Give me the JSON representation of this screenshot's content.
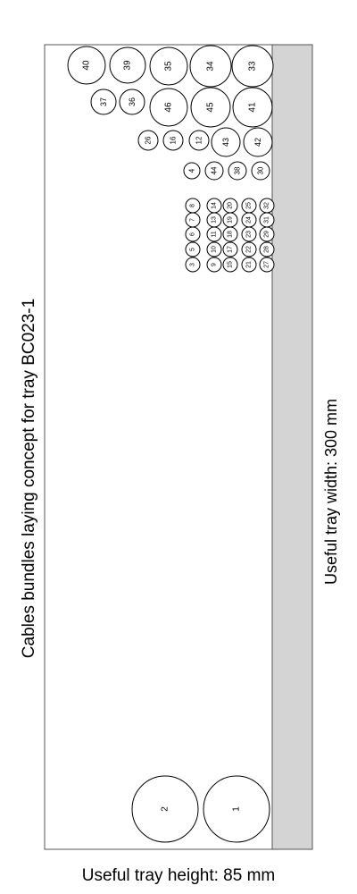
{
  "diagram": {
    "title": "Cables bundles laying concept for tray BC023-1",
    "width_label": "Useful tray width: 300 mm",
    "height_label": "Useful tray height: 85 mm",
    "colors": {
      "tray_fill": "#d4d4d4",
      "outline": "#555555",
      "circle": "#000000",
      "background": "#ffffff"
    },
    "bundles": [
      {
        "id": "1"
      },
      {
        "id": "2"
      },
      {
        "id": "33"
      },
      {
        "id": "34"
      },
      {
        "id": "35"
      },
      {
        "id": "39"
      },
      {
        "id": "40"
      },
      {
        "id": "41"
      },
      {
        "id": "45"
      },
      {
        "id": "46"
      },
      {
        "id": "36"
      },
      {
        "id": "37"
      },
      {
        "id": "42"
      },
      {
        "id": "43"
      },
      {
        "id": "12"
      },
      {
        "id": "16"
      },
      {
        "id": "26"
      },
      {
        "id": "30"
      },
      {
        "id": "38"
      },
      {
        "id": "44"
      },
      {
        "id": "4"
      },
      {
        "id": "3"
      },
      {
        "id": "5"
      },
      {
        "id": "6"
      },
      {
        "id": "7"
      },
      {
        "id": "8"
      },
      {
        "id": "9"
      },
      {
        "id": "10"
      },
      {
        "id": "11"
      },
      {
        "id": "13"
      },
      {
        "id": "14"
      },
      {
        "id": "15"
      },
      {
        "id": "17"
      },
      {
        "id": "18"
      },
      {
        "id": "19"
      },
      {
        "id": "20"
      },
      {
        "id": "21"
      },
      {
        "id": "22"
      },
      {
        "id": "23"
      },
      {
        "id": "24"
      },
      {
        "id": "25"
      },
      {
        "id": "27"
      },
      {
        "id": "28"
      },
      {
        "id": "29"
      },
      {
        "id": "31"
      },
      {
        "id": "32"
      }
    ]
  }
}
